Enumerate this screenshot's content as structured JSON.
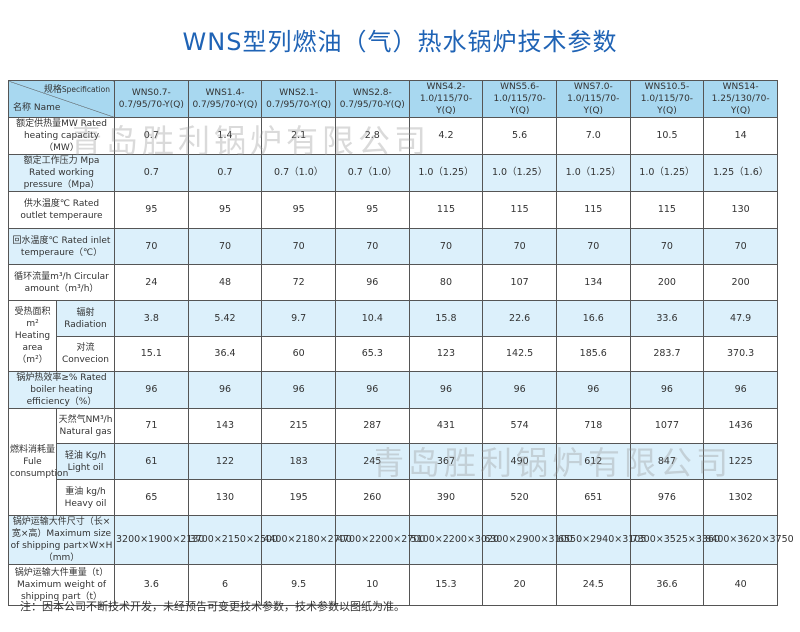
{
  "title": "WNS型列燃油（气）热水锅炉技术参数",
  "header": {
    "spec_label": "规格",
    "spec_label_en": "Specification",
    "name_label": "名称 Name",
    "models": [
      [
        "WNS0.7-",
        "0.7/95/70-Y(Q)"
      ],
      [
        "WNS1.4-",
        "0.7/95/70-Y(Q)"
      ],
      [
        "WNS2.1-",
        "0.7/95/70-Y(Q)"
      ],
      [
        "WNS2.8-",
        "0.7/95/70-Y(Q)"
      ],
      [
        "WNS4.2-",
        "1.0/115/70-Y(Q)"
      ],
      [
        "WNS5.6-",
        "1.0/115/70-Y(Q)"
      ],
      [
        "WNS7.0-",
        "1.0/115/70-Y(Q)"
      ],
      [
        "WNS10.5-",
        "1.0/115/70-Y(Q)"
      ],
      [
        "WNS14-",
        "1.25/130/70-Y(Q)"
      ]
    ]
  },
  "rows": [
    {
      "label": "额定供热量MW Rated heating capacity（MW）",
      "values": [
        "0.7",
        "1.4",
        "2.1",
        "2.8",
        "4.2",
        "5.6",
        "7.0",
        "10.5",
        "14"
      ]
    },
    {
      "label": "额定工作压力 Mpa Rated working pressure（Mpa）",
      "values": [
        "0.7",
        "0.7",
        "0.7（1.0）",
        "0.7（1.0）",
        "1.0（1.25）",
        "1.0（1.25）",
        "1.0（1.25）",
        "1.0（1.25）",
        "1.25（1.6）"
      ]
    },
    {
      "label": "供水温度℃ Rated outlet temperaure",
      "values": [
        "95",
        "95",
        "95",
        "95",
        "115",
        "115",
        "115",
        "115",
        "130"
      ]
    },
    {
      "label": "回水温度℃ Rated inlet temperaure（℃）",
      "values": [
        "70",
        "70",
        "70",
        "70",
        "70",
        "70",
        "70",
        "70",
        "70"
      ]
    },
    {
      "label": "循环流量m³/h Circular amount（m³/h）",
      "values": [
        "24",
        "48",
        "72",
        "96",
        "80",
        "107",
        "134",
        "200",
        "200"
      ]
    },
    {
      "group": "受热面积m² Heating area（m²）",
      "label": "辐射 Radiation",
      "values": [
        "3.8",
        "5.42",
        "9.7",
        "10.4",
        "15.8",
        "22.6",
        "16.6",
        "33.6",
        "47.9"
      ]
    },
    {
      "label": "对流 Convecion",
      "values": [
        "15.1",
        "36.4",
        "60",
        "65.3",
        "123",
        "142.5",
        "185.6",
        "283.7",
        "370.3"
      ]
    },
    {
      "label": "锅炉热效率≥% Rated boiler heating efficiency（%）",
      "values": [
        "96",
        "96",
        "96",
        "96",
        "96",
        "96",
        "96",
        "96",
        "96"
      ]
    },
    {
      "group": "燃料消耗量 Fule consumption",
      "label": "天然气NM³/h Natural gas",
      "values": [
        "71",
        "143",
        "215",
        "287",
        "431",
        "574",
        "718",
        "1077",
        "1436"
      ]
    },
    {
      "label": "轻油 Kg/h Light oil",
      "values": [
        "61",
        "122",
        "183",
        "245",
        "367",
        "490",
        "612",
        "847",
        "1225"
      ]
    },
    {
      "label": "重油 kg/h Heavy oil",
      "values": [
        "65",
        "130",
        "195",
        "260",
        "390",
        "520",
        "651",
        "976",
        "1302"
      ]
    },
    {
      "label": "锅炉运输大件尺寸（长×宽×高）Maximum size of shipping part×W×H（mm）",
      "values": [
        "3200×1900×2130",
        "3700×2150×2500",
        "4400×2180×2700",
        "4700×2200×2700",
        "5100×2200×3020",
        "6300×2900×3100",
        "6550×2940×3105",
        "7300×3525×3360",
        "8400×3620×3750"
      ]
    },
    {
      "label": "锅炉运输大件重量（t）Maximum weight of shipping part（t）",
      "values": [
        "3.6",
        "6",
        "9.5",
        "10",
        "15.3",
        "20",
        "24.5",
        "36.6",
        "40"
      ]
    }
  ],
  "note": "注：因本公司不断技术开发，未经预告可变更技术参数，技术参数以图纸为准。",
  "watermark": "青岛胜利锅炉有限公司",
  "colors": {
    "title": "#1f63b5",
    "header_bg": "#a8d8f0",
    "row_alt_bg": "#dcf0fb"
  }
}
